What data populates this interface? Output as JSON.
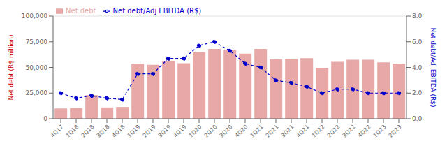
{
  "chart_data": {
    "type": "bar",
    "categories": [
      "4Q17",
      "1Q18",
      "2Q18",
      "3Q18",
      "4Q18",
      "1Q19",
      "2Q19",
      "3Q19",
      "4Q19",
      "1Q20",
      "2Q20",
      "3Q20",
      "4Q20",
      "1Q21",
      "2Q21",
      "3Q21",
      "4Q21",
      "1Q22",
      "2Q22",
      "3Q22",
      "4Q22",
      "1Q23",
      "2Q23"
    ],
    "series": [
      {
        "name": "Net debt",
        "type": "bar",
        "color": "#e8a8a8",
        "values": [
          10000,
          10500,
          23000,
          11000,
          11500,
          53500,
          52500,
          56000,
          54000,
          65000,
          68000,
          67000,
          63500,
          68000,
          58000,
          58500,
          59000,
          49500,
          55500,
          57500,
          57500,
          55000,
          53500
        ]
      },
      {
        "name": "Net debt/Adj EBITDA (R$)",
        "type": "line",
        "axis": "y2",
        "color": "#0000cc",
        "line_style": "dashed",
        "marker": "circle",
        "values": [
          2.0,
          1.6,
          1.8,
          1.6,
          1.5,
          3.5,
          3.5,
          4.7,
          4.7,
          5.7,
          6.0,
          5.3,
          4.3,
          4.0,
          3.0,
          2.8,
          2.5,
          2.0,
          2.3,
          2.3,
          2.0,
          2.0,
          2.0
        ]
      }
    ],
    "ylabel": "Net debt (R$ million)",
    "y2label": "Net debt/Adj EBITDA (R$)",
    "ylim": [
      0,
      100000
    ],
    "yticks": [
      0,
      {
        "value": 25000,
        "label": "25,000"
      },
      {
        "value": 50000,
        "label": "50,000"
      },
      {
        "value": 75000,
        "label": "75,000"
      },
      {
        "value": 100000,
        "label": "100,000"
      }
    ],
    "y2lim": [
      0,
      8
    ],
    "y2ticks": [
      {
        "value": 0,
        "label": "0.0"
      },
      {
        "value": 2,
        "label": "2.0"
      },
      {
        "value": 4,
        "label": "4.0"
      },
      {
        "value": 6,
        "label": "6.0"
      },
      {
        "value": 8,
        "label": "8.0"
      }
    ],
    "grid": true,
    "legend": "upper left"
  }
}
